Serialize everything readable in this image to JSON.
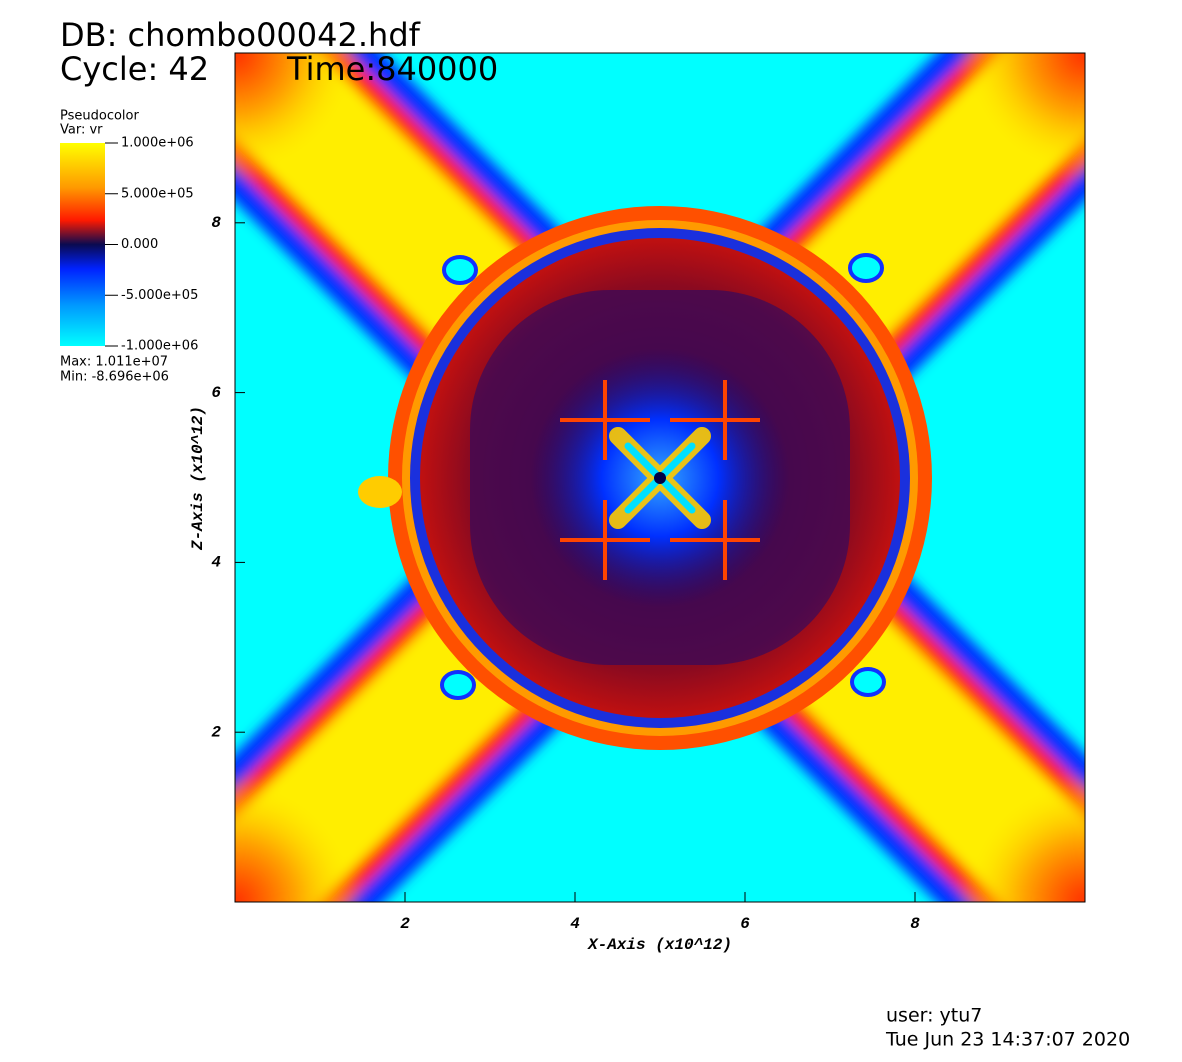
{
  "chart_data": {
    "type": "pseudocolor",
    "title": "DB: chombo00042.hdf",
    "cycle": "Cycle: 42",
    "time": "Time:840000",
    "legend_title": "Pseudocolor",
    "legend_var": "Var: vr",
    "legend_max": "Max:  1.011e+07",
    "legend_min": "Min: -8.696e+06",
    "colorbar_lim": [
      -1000000,
      1000000
    ],
    "colorbar_ticks": [
      {
        "value": 1000000,
        "label": "1.000e+06"
      },
      {
        "value": 500000,
        "label": "5.000e+05"
      },
      {
        "value": 0,
        "label": "0.000"
      },
      {
        "value": -500000,
        "label": "-5.000e+05"
      },
      {
        "value": -1000000,
        "label": "-1.000e+06"
      }
    ],
    "xlabel": "X-Axis  (x10^12)",
    "ylabel": "Z-Axis  (x10^12)",
    "xlim": [
      0,
      10
    ],
    "ylim": [
      0,
      10
    ],
    "xticks": [
      2,
      4,
      6,
      8
    ],
    "yticks": [
      2,
      4,
      6,
      8
    ],
    "user": "user: ytu7",
    "date": "Tue Jun 23 14:37:07 2020"
  }
}
